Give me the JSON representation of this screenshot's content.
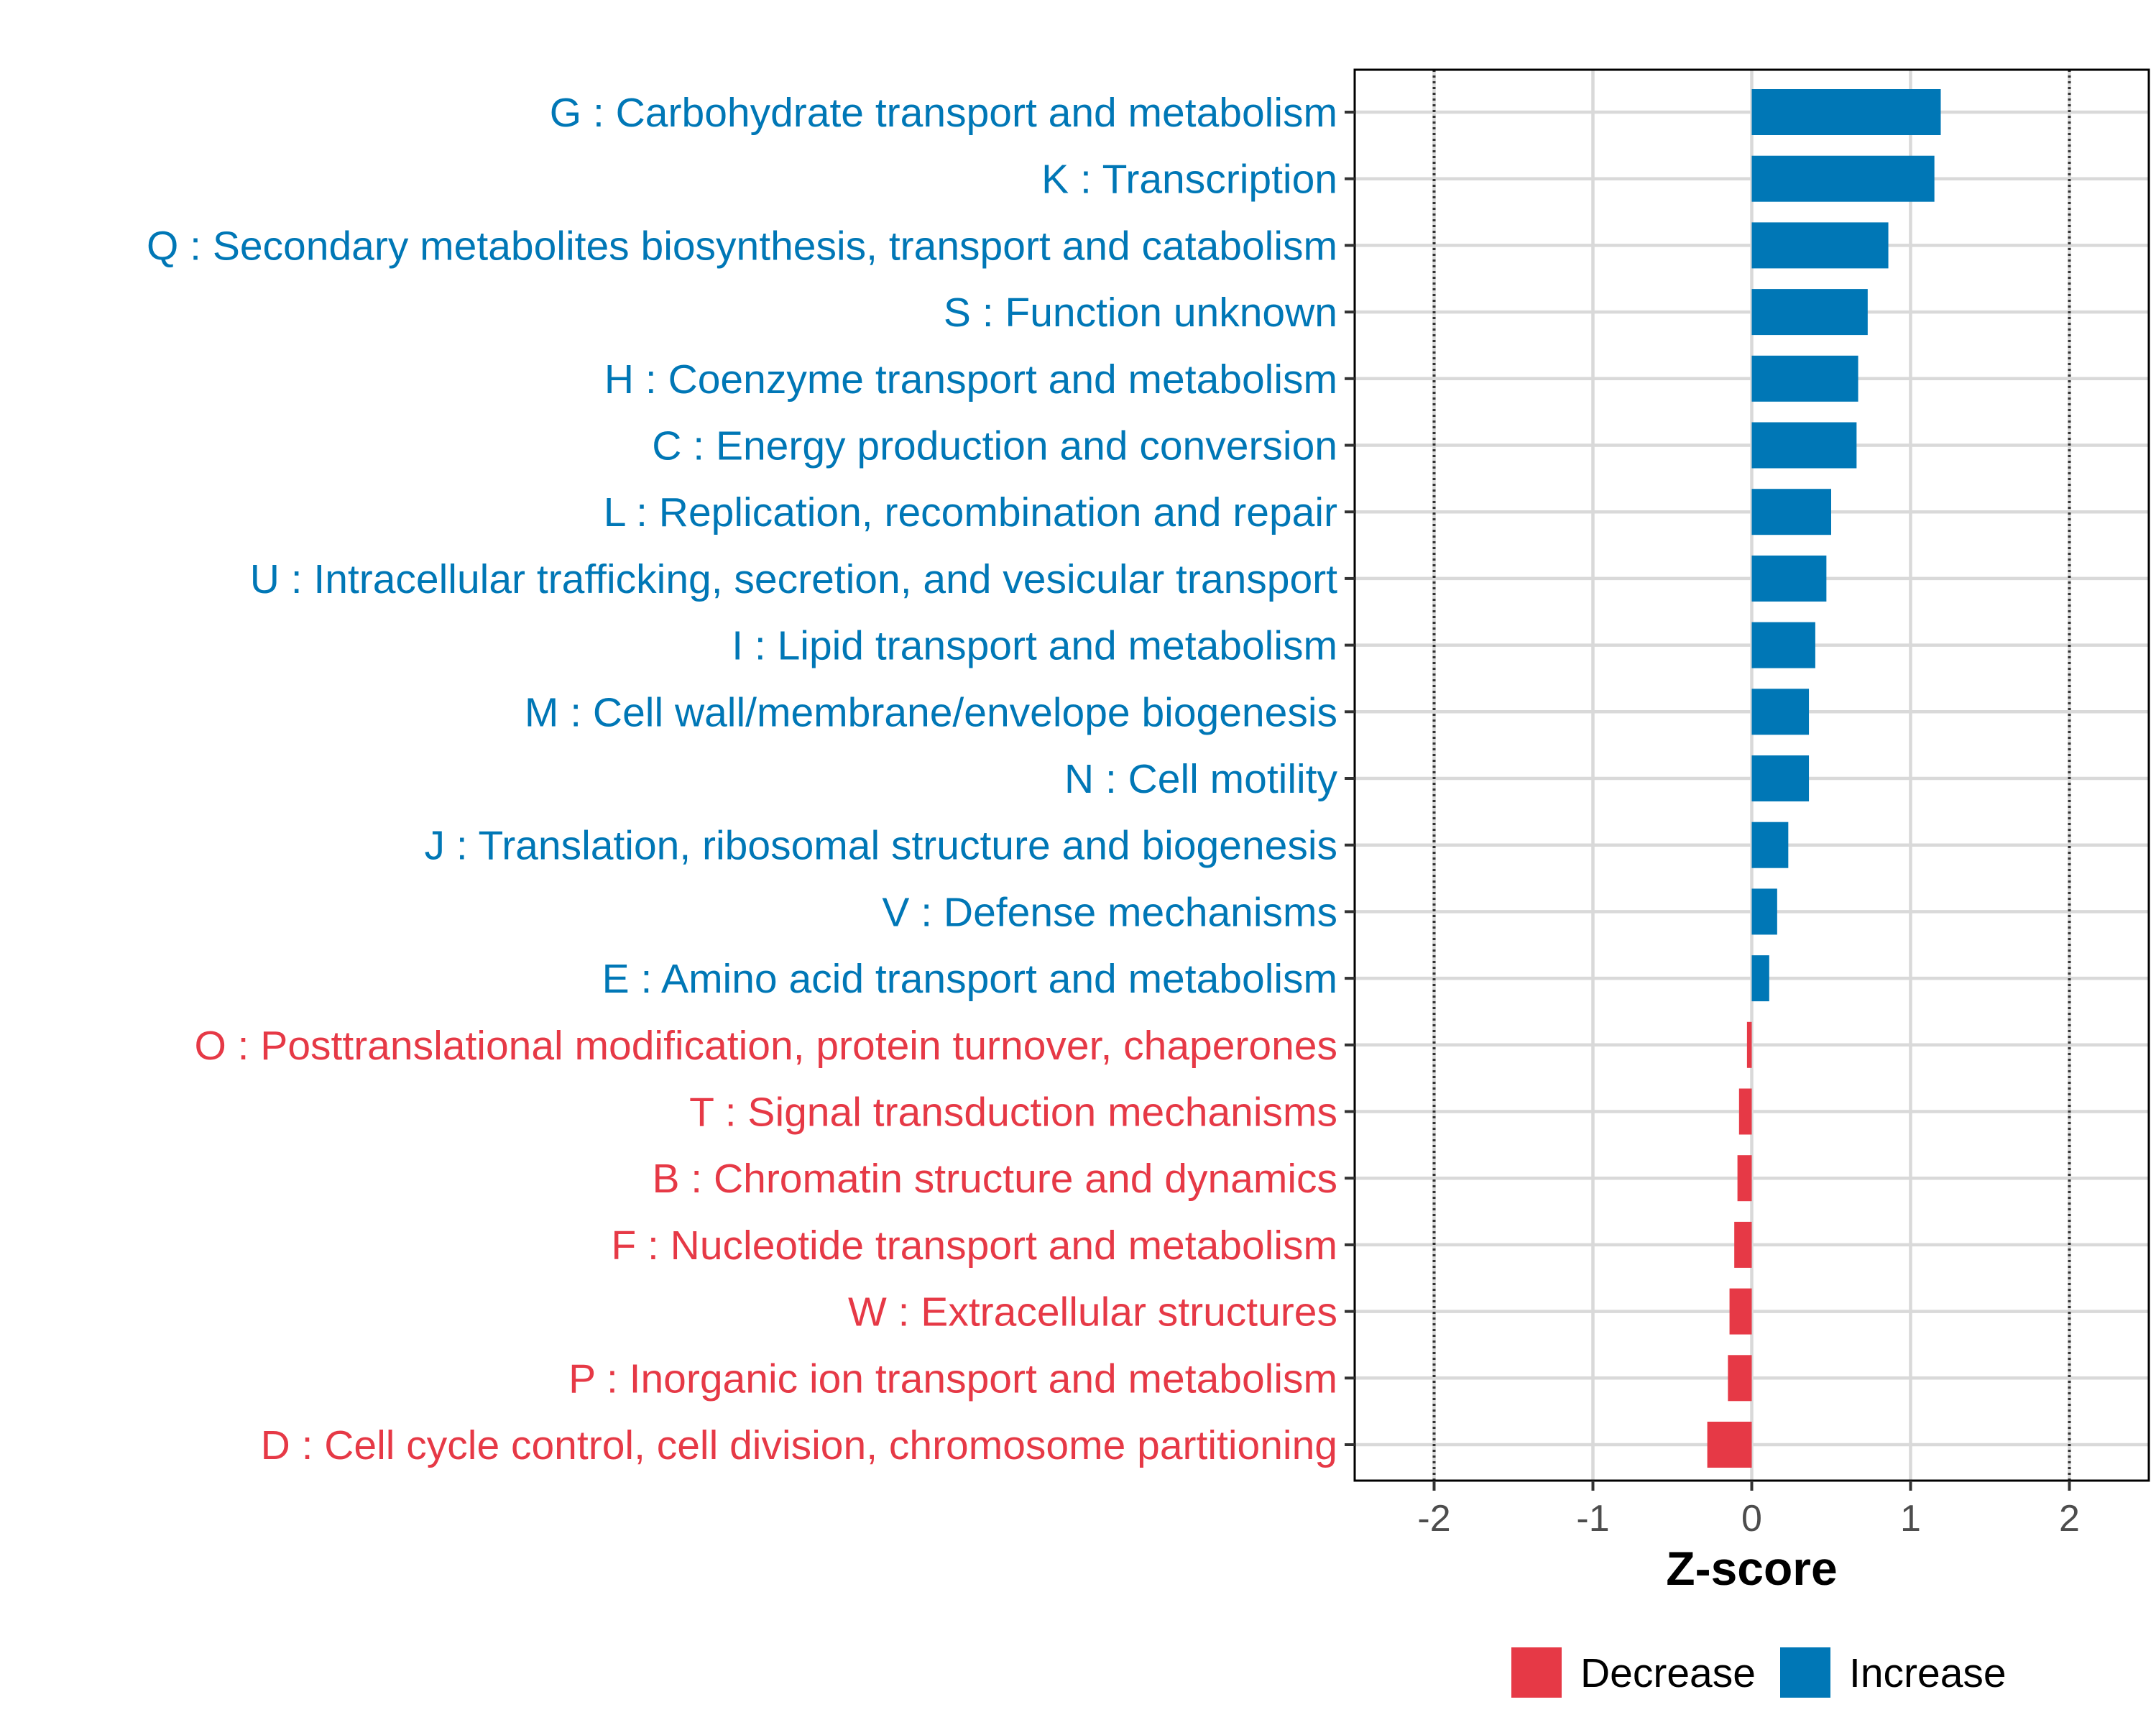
{
  "chart_data": {
    "type": "bar",
    "orientation": "horizontal",
    "xlabel": "Z-score",
    "xlim": [
      -2.5,
      2.5
    ],
    "x_ticks": [
      "-2",
      "-1",
      "0",
      "1",
      "2"
    ],
    "x_tick_values": [
      -2,
      -1,
      0,
      1,
      2
    ],
    "reference_lines": [
      -2,
      2
    ],
    "grid": true,
    "legend_position": "bottom",
    "colors": {
      "Decrease": "#E63946",
      "Increase": "#0077B6"
    },
    "legend": [
      {
        "name": "Decrease",
        "color": "#E63946"
      },
      {
        "name": "Increase",
        "color": "#0077B6"
      }
    ],
    "categories": [
      "G : Carbohydrate transport and metabolism",
      "K : Transcription",
      "Q : Secondary metabolites biosynthesis, transport and catabolism",
      "S : Function unknown",
      "H : Coenzyme transport and metabolism",
      "C : Energy production and conversion",
      "L : Replication, recombination and repair",
      "U : Intracellular trafficking, secretion, and vesicular transport",
      "I : Lipid transport and metabolism",
      "M : Cell wall/membrane/envelope biogenesis",
      "N : Cell motility",
      "J : Translation, ribosomal structure and biogenesis",
      "V : Defense mechanisms",
      "E : Amino acid transport and metabolism",
      "O : Posttranslational modification, protein turnover, chaperones",
      "T : Signal transduction mechanisms",
      "B : Chromatin structure and dynamics",
      "F : Nucleotide transport and metabolism",
      "W : Extracellular structures",
      "P : Inorganic ion transport and metabolism",
      "D : Cell cycle control, cell division, chromosome partitioning"
    ],
    "values": [
      1.19,
      1.15,
      0.86,
      0.73,
      0.67,
      0.66,
      0.5,
      0.47,
      0.4,
      0.36,
      0.36,
      0.23,
      0.16,
      0.11,
      -0.03,
      -0.08,
      -0.09,
      -0.11,
      -0.14,
      -0.15,
      -0.28
    ],
    "groups": [
      "Increase",
      "Increase",
      "Increase",
      "Increase",
      "Increase",
      "Increase",
      "Increase",
      "Increase",
      "Increase",
      "Increase",
      "Increase",
      "Increase",
      "Increase",
      "Increase",
      "Decrease",
      "Decrease",
      "Decrease",
      "Decrease",
      "Decrease",
      "Decrease",
      "Decrease"
    ]
  }
}
